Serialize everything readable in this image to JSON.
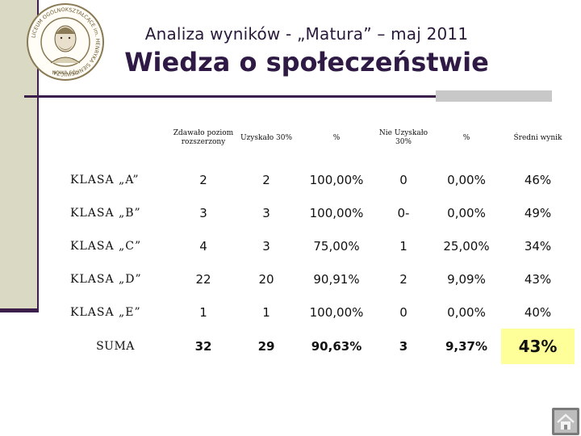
{
  "header": {
    "subtitle": "Analiza wyników - „Matura” – maj 2011",
    "title": "Wiedza o społeczeństwie"
  },
  "logo": {
    "ring_text": "LICEUM OGÓLNOKSZTAŁCĄCE im. HENRYKA SIENKIEWICZA",
    "bottom_text": "NOWA SÓL"
  },
  "table": {
    "headers": [
      "",
      "Zdawało poziom rozszerzony",
      "Uzyskało 30%",
      "%",
      "Nie Uzyskało 30%",
      "%",
      "Średni wynik"
    ],
    "rows": [
      {
        "label": "KLASA „A”",
        "cells": [
          "2",
          "2",
          "100,00%",
          "0",
          "0,00%",
          "46%"
        ]
      },
      {
        "label": "KLASA „B”",
        "cells": [
          "3",
          "3",
          "100,00%",
          "0-",
          "0,00%",
          "49%"
        ]
      },
      {
        "label": "KLASA „C”",
        "cells": [
          "4",
          "3",
          "75,00%",
          "1",
          "25,00%",
          "34%"
        ]
      },
      {
        "label": "KLASA „D”",
        "cells": [
          "22",
          "20",
          "90,91%",
          "2",
          "9,09%",
          "43%"
        ]
      },
      {
        "label": "KLASA „E”",
        "cells": [
          "1",
          "1",
          "100,00%",
          "0",
          "0,00%",
          "40%"
        ]
      }
    ],
    "summary": {
      "label": "SUMA",
      "cells": [
        "32",
        "29",
        "90,63%",
        "3",
        "9,37%",
        "43%"
      ]
    }
  },
  "colors": {
    "accent_dark": "#3b1e4a",
    "strip": "#d9d9c4",
    "highlight": "#ffff99"
  },
  "icons": {
    "logo": "school-seal-portrait",
    "nav": "home-icon"
  }
}
